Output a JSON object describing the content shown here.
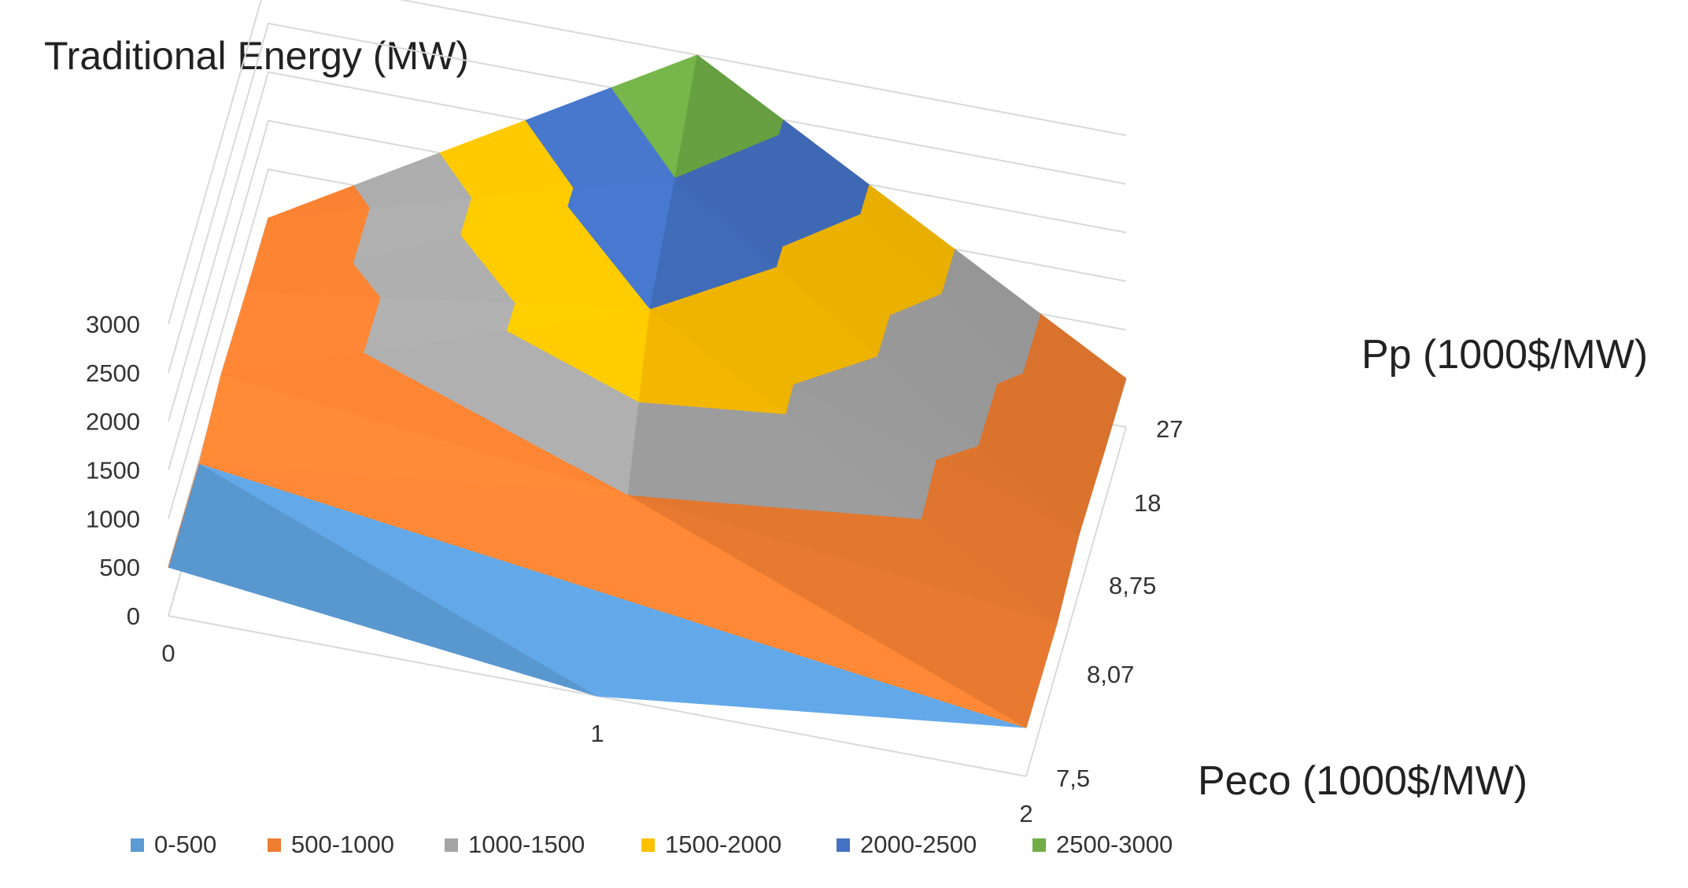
{
  "chart_data": {
    "type": "surface",
    "title": "Traditional Energy (MW)",
    "x_title": "Peco (1000$/MW)",
    "y_title": "Pp (1000$/MW)",
    "x_categories": [
      "0",
      "1",
      "2"
    ],
    "y_categories": [
      "7,5",
      "8,07",
      "8,75",
      "18",
      "27"
    ],
    "z_ticks": [
      "0",
      "500",
      "1000",
      "1500",
      "2000",
      "2500",
      "3000"
    ],
    "zlim": [
      0,
      3000
    ],
    "series": [
      {
        "name": "7,5",
        "values": [
          500,
          0,
          500
        ]
      },
      {
        "name": "8,07",
        "values": [
          500,
          1000,
          500
        ]
      },
      {
        "name": "8,75",
        "values": [
          500,
          2000,
          500
        ]
      },
      {
        "name": "18",
        "values": [
          500,
          2500,
          500
        ]
      },
      {
        "name": "27",
        "values": [
          500,
          3000,
          500
        ]
      }
    ],
    "legend": [
      {
        "label": "0-500",
        "color": "#5b9bd5"
      },
      {
        "label": "500-1000",
        "color": "#ed7d31"
      },
      {
        "label": "1000-1500",
        "color": "#a5a5a5"
      },
      {
        "label": "1500-2000",
        "color": "#ffc000"
      },
      {
        "label": "2000-2500",
        "color": "#4472c4"
      },
      {
        "label": "2500-3000",
        "color": "#70ad47"
      }
    ],
    "legend_position": "bottom"
  }
}
